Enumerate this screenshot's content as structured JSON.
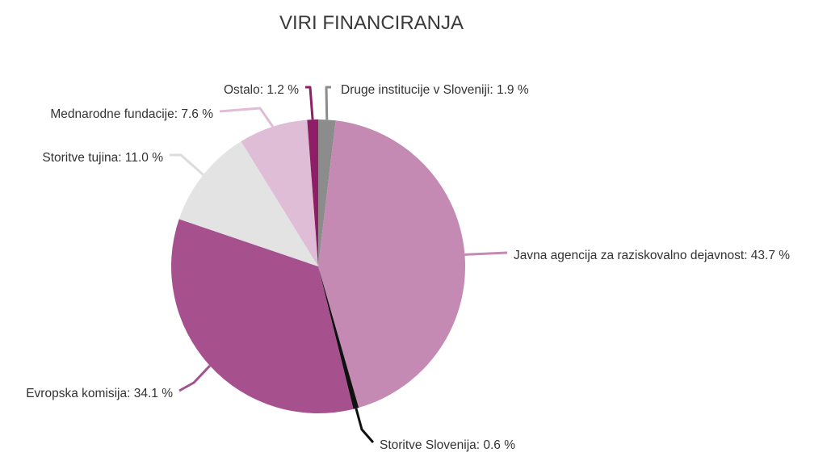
{
  "chart_data": {
    "type": "pie",
    "title": "VIRI FINANCIRANJA",
    "slices": [
      {
        "label": "Druge institucije v Sloveniji",
        "value": 1.9,
        "display": "Druge institucije v Sloveniji: 1.9 %",
        "color": "#8c8c8c"
      },
      {
        "label": "Javna agencija za raziskovalno dejavnost",
        "value": 43.7,
        "display": "Javna agencija za raziskovalno dejavnost: 43.7 %",
        "color": "#c48ab3"
      },
      {
        "label": "Storitve Slovenija",
        "value": 0.6,
        "display": "Storitve Slovenija: 0.6 %",
        "color": "#111111"
      },
      {
        "label": "Evropska komisija",
        "value": 34.1,
        "display": "Evropska komisija: 34.1 %",
        "color": "#a6518e"
      },
      {
        "label": "Storitve tujina",
        "value": 11.0,
        "display": "Storitve tujina: 11.0 %",
        "color": "#e3e3e3"
      },
      {
        "label": "Mednarodne fundacije",
        "value": 7.6,
        "display": "Mednarodne fundacije: 7.6 %",
        "color": "#e0bdd6"
      },
      {
        "label": "Ostalo",
        "value": 1.2,
        "display": "Ostalo: 1.2 %",
        "color": "#8e1f67"
      }
    ]
  }
}
